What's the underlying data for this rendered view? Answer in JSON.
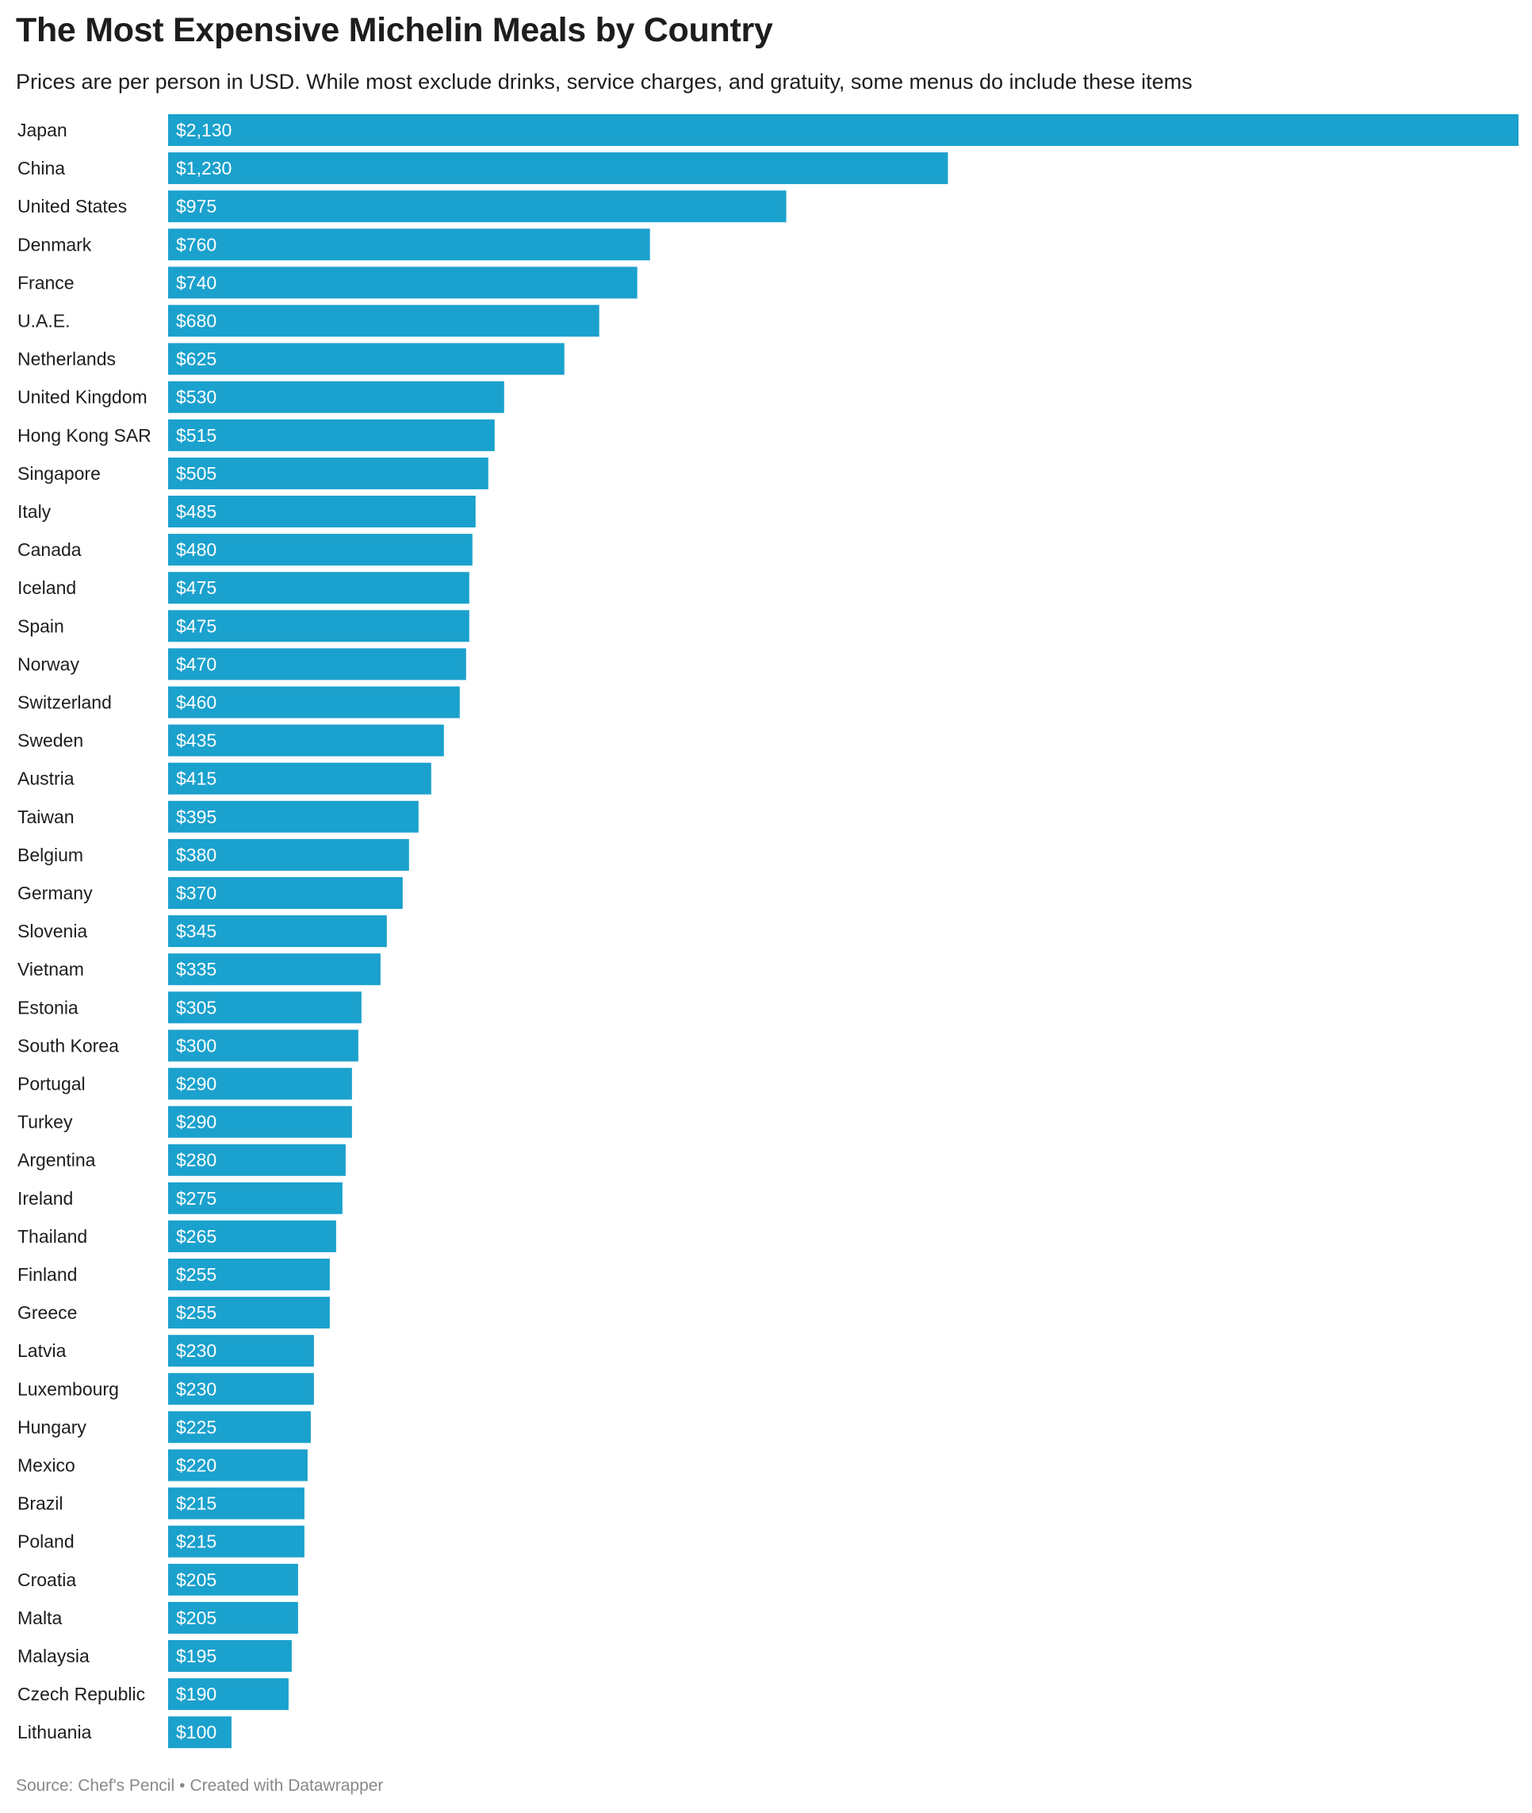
{
  "title": "The Most Expensive Michelin Meals by Country",
  "subtitle": "Prices are per person in USD. While most exclude drinks, service charges, and gratuity, some menus do include these items",
  "footer": {
    "source": "Source: Chef's Pencil",
    "separator": "•",
    "credit": "Created with Datawrapper"
  },
  "colors": {
    "bar": "#1ba1cd",
    "bar_label": "#ffffff",
    "category_label": "#1d1d1d"
  },
  "chart_data": {
    "type": "bar",
    "orientation": "horizontal",
    "title": "The Most Expensive Michelin Meals by Country",
    "subtitle": "Prices are per person in USD. While most exclude drinks, service charges, and gratuity, some menus do include these items",
    "xlabel": "",
    "ylabel": "",
    "xlim": [
      0,
      2130
    ],
    "grid": false,
    "legend": "none",
    "value_prefix": "$",
    "categories": [
      "Japan",
      "China",
      "United States",
      "Denmark",
      "France",
      "U.A.E.",
      "Netherlands",
      "United Kingdom",
      "Hong Kong SAR",
      "Singapore",
      "Italy",
      "Canada",
      "Iceland",
      "Spain",
      "Norway",
      "Switzerland",
      "Sweden",
      "Austria",
      "Taiwan",
      "Belgium",
      "Germany",
      "Slovenia",
      "Vietnam",
      "Estonia",
      "South Korea",
      "Portugal",
      "Turkey",
      "Argentina",
      "Ireland",
      "Thailand",
      "Finland",
      "Greece",
      "Latvia",
      "Luxembourg",
      "Hungary",
      "Mexico",
      "Brazil",
      "Poland",
      "Croatia",
      "Malta",
      "Malaysia",
      "Czech Republic",
      "Lithuania"
    ],
    "values": [
      2130,
      1230,
      975,
      760,
      740,
      680,
      625,
      530,
      515,
      505,
      485,
      480,
      475,
      475,
      470,
      460,
      435,
      415,
      395,
      380,
      370,
      345,
      335,
      305,
      300,
      290,
      290,
      280,
      275,
      265,
      255,
      255,
      230,
      230,
      225,
      220,
      215,
      215,
      205,
      205,
      195,
      190,
      100
    ],
    "labels": [
      "$2,130",
      "$1,230",
      "$975",
      "$760",
      "$740",
      "$680",
      "$625",
      "$530",
      "$515",
      "$505",
      "$485",
      "$480",
      "$475",
      "$475",
      "$470",
      "$460",
      "$435",
      "$415",
      "$395",
      "$380",
      "$370",
      "$345",
      "$335",
      "$305",
      "$300",
      "$290",
      "$290",
      "$280",
      "$275",
      "$265",
      "$255",
      "$255",
      "$230",
      "$230",
      "$225",
      "$220",
      "$215",
      "$215",
      "$205",
      "$205",
      "$195",
      "$190",
      "$100"
    ]
  }
}
